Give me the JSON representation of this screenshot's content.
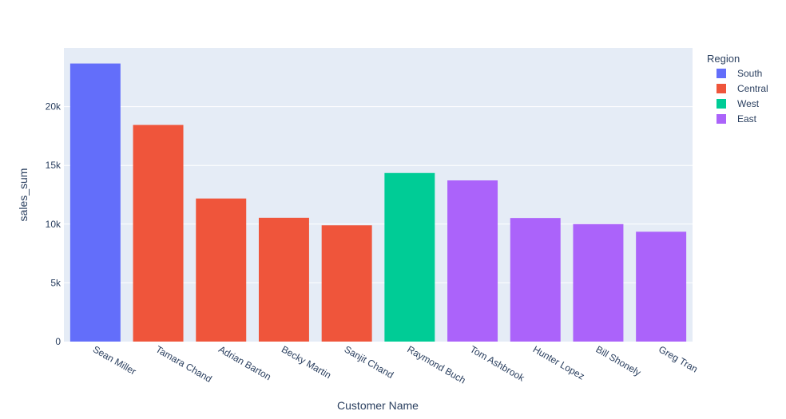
{
  "chart_data": {
    "type": "bar",
    "xlabel": "Customer Name",
    "ylabel": "sales_sum",
    "ylim": [
      0,
      25000
    ],
    "yticks": [
      0,
      5000,
      10000,
      15000,
      20000
    ],
    "ytick_labels": [
      "0",
      "5k",
      "10k",
      "15k",
      "20k"
    ],
    "grid": true,
    "legend": {
      "title": "Region",
      "placement": "top-right",
      "entries": [
        "South",
        "Central",
        "West",
        "East"
      ]
    },
    "colors": {
      "South": "#636efa",
      "Central": "#ef553b",
      "West": "#00cc96",
      "East": "#ab63fa",
      "plot_background": "#e5ecf6",
      "gridline": "#ffffff",
      "text": "#2a3f5f"
    },
    "categories": [
      "Sean Miller",
      "Tamara Chand",
      "Adrian Barton",
      "Becky Martin",
      "Sanjit Chand",
      "Raymond Buch",
      "Tom Ashbrook",
      "Hunter Lopez",
      "Bill Shonely",
      "Greg Tran"
    ],
    "bars": [
      {
        "category": "Sean Miller",
        "region": "South",
        "value": 23670
      },
      {
        "category": "Tamara Chand",
        "region": "Central",
        "value": 18440
      },
      {
        "category": "Adrian Barton",
        "region": "Central",
        "value": 12180
      },
      {
        "category": "Becky Martin",
        "region": "Central",
        "value": 10540
      },
      {
        "category": "Sanjit Chand",
        "region": "Central",
        "value": 9900
      },
      {
        "category": "Raymond Buch",
        "region": "West",
        "value": 14350
      },
      {
        "category": "Tom Ashbrook",
        "region": "East",
        "value": 13720
      },
      {
        "category": "Hunter Lopez",
        "region": "East",
        "value": 10520
      },
      {
        "category": "Bill Shonely",
        "region": "East",
        "value": 10000
      },
      {
        "category": "Greg Tran",
        "region": "East",
        "value": 9350
      }
    ]
  }
}
